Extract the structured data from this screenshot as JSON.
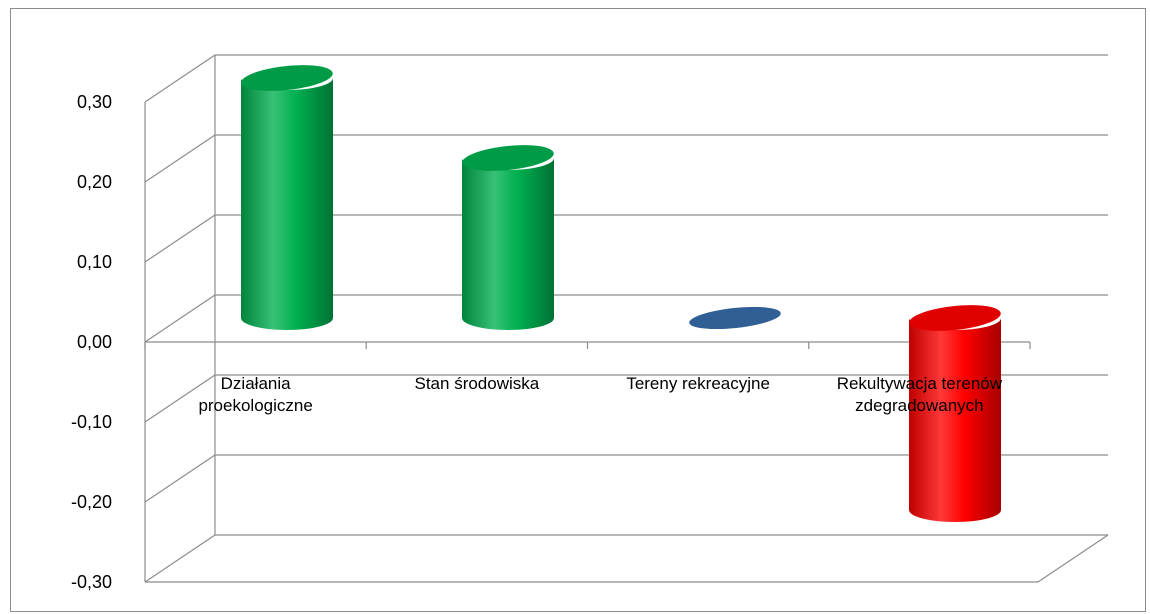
{
  "chart_data": {
    "type": "bar",
    "style": "3d-cylinder",
    "categories": [
      [
        "Działania",
        "proekologiczne"
      ],
      [
        "Stan środowiska"
      ],
      [
        "Tereny rekreacyjne"
      ],
      [
        "Rekultywacja terenów",
        "zdegradowanych"
      ]
    ],
    "values": [
      0.3,
      0.2,
      0.0,
      -0.24
    ],
    "bar_colors": [
      "#00b050",
      "#00b050",
      "#2f5f95",
      "#ff0000"
    ],
    "ylim": [
      -0.3,
      0.3
    ],
    "yticks": [
      "0,30",
      "0,20",
      "0,10",
      "0,00",
      "-0,10",
      "-0,20",
      "-0,30"
    ],
    "ytick_values": [
      0.3,
      0.2,
      0.1,
      0.0,
      -0.1,
      -0.2,
      -0.3
    ],
    "grid": true,
    "legend": "none"
  }
}
